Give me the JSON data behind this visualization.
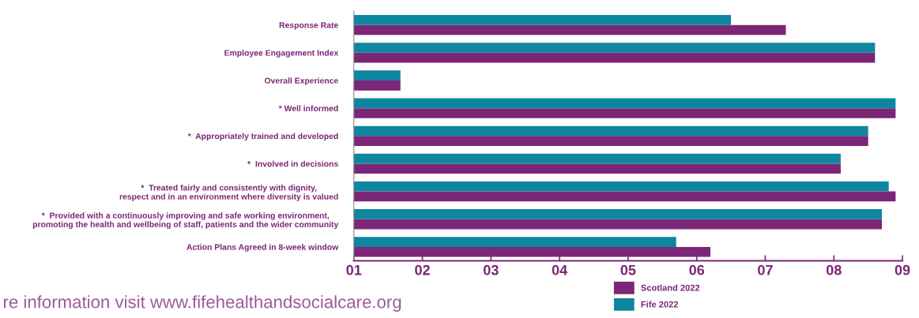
{
  "chart_data": {
    "type": "bar",
    "orientation": "horizontal",
    "categories": [
      "Response Rate",
      "Employee Engagement Index",
      "Overall Experience",
      "* Well informed",
      "*  Appropriately trained and developed",
      "*  Involved in decisions",
      "*  Treated fairly and consistently with dignity,\nrespect and in an environment where diversity is valued",
      "*  Provided with a continuously improving and safe working environment,\npromoting the health and wellbeing of staff, patients and the wider community",
      "Action Plans Agreed in 8-week window"
    ],
    "series": [
      {
        "name": "Scotland 2022",
        "color": "#7b2677",
        "values": [
          7.3,
          8.6,
          1.68,
          8.9,
          8.5,
          8.1,
          8.9,
          8.7,
          6.2
        ]
      },
      {
        "name": "Fife 2022",
        "color": "#0e86a0",
        "values": [
          6.5,
          8.6,
          1.68,
          8.9,
          8.5,
          8.1,
          8.8,
          8.7,
          5.7
        ]
      }
    ],
    "xlim": [
      1,
      9
    ],
    "xticks": [
      {
        "value": 1,
        "label": "01"
      },
      {
        "value": 2,
        "label": "02"
      },
      {
        "value": 3,
        "label": "03"
      },
      {
        "value": 4,
        "label": "04"
      },
      {
        "value": 5,
        "label": "05"
      },
      {
        "value": 6,
        "label": "06"
      },
      {
        "value": 7,
        "label": "07"
      },
      {
        "value": 8,
        "label": "08"
      },
      {
        "value": 9,
        "label": "09"
      }
    ],
    "grid": false,
    "legend": "bottom right",
    "annotations": [
      "re information visit www.fifehealthandsocialcare.org"
    ]
  }
}
